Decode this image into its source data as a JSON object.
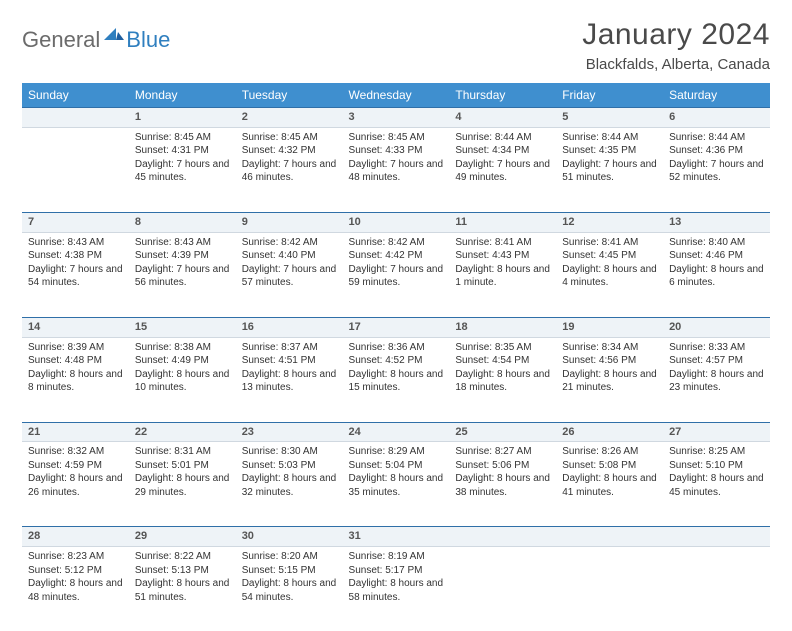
{
  "logo": {
    "text1": "General",
    "text2": "Blue"
  },
  "title": "January 2024",
  "location": "Blackfalds, Alberta, Canada",
  "colors": {
    "header_bg": "#3f8fcf",
    "header_text": "#ffffff",
    "daynum_bg": "#eef3f7",
    "daynum_border_top": "#2f6fa8",
    "body_text": "#333333",
    "logo_gray": "#6b6b6b",
    "logo_blue": "#2f7fbf"
  },
  "weekdays": [
    "Sunday",
    "Monday",
    "Tuesday",
    "Wednesday",
    "Thursday",
    "Friday",
    "Saturday"
  ],
  "weeks": [
    {
      "nums": [
        "",
        "1",
        "2",
        "3",
        "4",
        "5",
        "6"
      ],
      "cells": [
        {
          "sunrise": "",
          "sunset": "",
          "daylight": ""
        },
        {
          "sunrise": "Sunrise: 8:45 AM",
          "sunset": "Sunset: 4:31 PM",
          "daylight": "Daylight: 7 hours and 45 minutes."
        },
        {
          "sunrise": "Sunrise: 8:45 AM",
          "sunset": "Sunset: 4:32 PM",
          "daylight": "Daylight: 7 hours and 46 minutes."
        },
        {
          "sunrise": "Sunrise: 8:45 AM",
          "sunset": "Sunset: 4:33 PM",
          "daylight": "Daylight: 7 hours and 48 minutes."
        },
        {
          "sunrise": "Sunrise: 8:44 AM",
          "sunset": "Sunset: 4:34 PM",
          "daylight": "Daylight: 7 hours and 49 minutes."
        },
        {
          "sunrise": "Sunrise: 8:44 AM",
          "sunset": "Sunset: 4:35 PM",
          "daylight": "Daylight: 7 hours and 51 minutes."
        },
        {
          "sunrise": "Sunrise: 8:44 AM",
          "sunset": "Sunset: 4:36 PM",
          "daylight": "Daylight: 7 hours and 52 minutes."
        }
      ]
    },
    {
      "nums": [
        "7",
        "8",
        "9",
        "10",
        "11",
        "12",
        "13"
      ],
      "cells": [
        {
          "sunrise": "Sunrise: 8:43 AM",
          "sunset": "Sunset: 4:38 PM",
          "daylight": "Daylight: 7 hours and 54 minutes."
        },
        {
          "sunrise": "Sunrise: 8:43 AM",
          "sunset": "Sunset: 4:39 PM",
          "daylight": "Daylight: 7 hours and 56 minutes."
        },
        {
          "sunrise": "Sunrise: 8:42 AM",
          "sunset": "Sunset: 4:40 PM",
          "daylight": "Daylight: 7 hours and 57 minutes."
        },
        {
          "sunrise": "Sunrise: 8:42 AM",
          "sunset": "Sunset: 4:42 PM",
          "daylight": "Daylight: 7 hours and 59 minutes."
        },
        {
          "sunrise": "Sunrise: 8:41 AM",
          "sunset": "Sunset: 4:43 PM",
          "daylight": "Daylight: 8 hours and 1 minute."
        },
        {
          "sunrise": "Sunrise: 8:41 AM",
          "sunset": "Sunset: 4:45 PM",
          "daylight": "Daylight: 8 hours and 4 minutes."
        },
        {
          "sunrise": "Sunrise: 8:40 AM",
          "sunset": "Sunset: 4:46 PM",
          "daylight": "Daylight: 8 hours and 6 minutes."
        }
      ]
    },
    {
      "nums": [
        "14",
        "15",
        "16",
        "17",
        "18",
        "19",
        "20"
      ],
      "cells": [
        {
          "sunrise": "Sunrise: 8:39 AM",
          "sunset": "Sunset: 4:48 PM",
          "daylight": "Daylight: 8 hours and 8 minutes."
        },
        {
          "sunrise": "Sunrise: 8:38 AM",
          "sunset": "Sunset: 4:49 PM",
          "daylight": "Daylight: 8 hours and 10 minutes."
        },
        {
          "sunrise": "Sunrise: 8:37 AM",
          "sunset": "Sunset: 4:51 PM",
          "daylight": "Daylight: 8 hours and 13 minutes."
        },
        {
          "sunrise": "Sunrise: 8:36 AM",
          "sunset": "Sunset: 4:52 PM",
          "daylight": "Daylight: 8 hours and 15 minutes."
        },
        {
          "sunrise": "Sunrise: 8:35 AM",
          "sunset": "Sunset: 4:54 PM",
          "daylight": "Daylight: 8 hours and 18 minutes."
        },
        {
          "sunrise": "Sunrise: 8:34 AM",
          "sunset": "Sunset: 4:56 PM",
          "daylight": "Daylight: 8 hours and 21 minutes."
        },
        {
          "sunrise": "Sunrise: 8:33 AM",
          "sunset": "Sunset: 4:57 PM",
          "daylight": "Daylight: 8 hours and 23 minutes."
        }
      ]
    },
    {
      "nums": [
        "21",
        "22",
        "23",
        "24",
        "25",
        "26",
        "27"
      ],
      "cells": [
        {
          "sunrise": "Sunrise: 8:32 AM",
          "sunset": "Sunset: 4:59 PM",
          "daylight": "Daylight: 8 hours and 26 minutes."
        },
        {
          "sunrise": "Sunrise: 8:31 AM",
          "sunset": "Sunset: 5:01 PM",
          "daylight": "Daylight: 8 hours and 29 minutes."
        },
        {
          "sunrise": "Sunrise: 8:30 AM",
          "sunset": "Sunset: 5:03 PM",
          "daylight": "Daylight: 8 hours and 32 minutes."
        },
        {
          "sunrise": "Sunrise: 8:29 AM",
          "sunset": "Sunset: 5:04 PM",
          "daylight": "Daylight: 8 hours and 35 minutes."
        },
        {
          "sunrise": "Sunrise: 8:27 AM",
          "sunset": "Sunset: 5:06 PM",
          "daylight": "Daylight: 8 hours and 38 minutes."
        },
        {
          "sunrise": "Sunrise: 8:26 AM",
          "sunset": "Sunset: 5:08 PM",
          "daylight": "Daylight: 8 hours and 41 minutes."
        },
        {
          "sunrise": "Sunrise: 8:25 AM",
          "sunset": "Sunset: 5:10 PM",
          "daylight": "Daylight: 8 hours and 45 minutes."
        }
      ]
    },
    {
      "nums": [
        "28",
        "29",
        "30",
        "31",
        "",
        "",
        ""
      ],
      "cells": [
        {
          "sunrise": "Sunrise: 8:23 AM",
          "sunset": "Sunset: 5:12 PM",
          "daylight": "Daylight: 8 hours and 48 minutes."
        },
        {
          "sunrise": "Sunrise: 8:22 AM",
          "sunset": "Sunset: 5:13 PM",
          "daylight": "Daylight: 8 hours and 51 minutes."
        },
        {
          "sunrise": "Sunrise: 8:20 AM",
          "sunset": "Sunset: 5:15 PM",
          "daylight": "Daylight: 8 hours and 54 minutes."
        },
        {
          "sunrise": "Sunrise: 8:19 AM",
          "sunset": "Sunset: 5:17 PM",
          "daylight": "Daylight: 8 hours and 58 minutes."
        },
        {
          "sunrise": "",
          "sunset": "",
          "daylight": ""
        },
        {
          "sunrise": "",
          "sunset": "",
          "daylight": ""
        },
        {
          "sunrise": "",
          "sunset": "",
          "daylight": ""
        }
      ]
    }
  ]
}
